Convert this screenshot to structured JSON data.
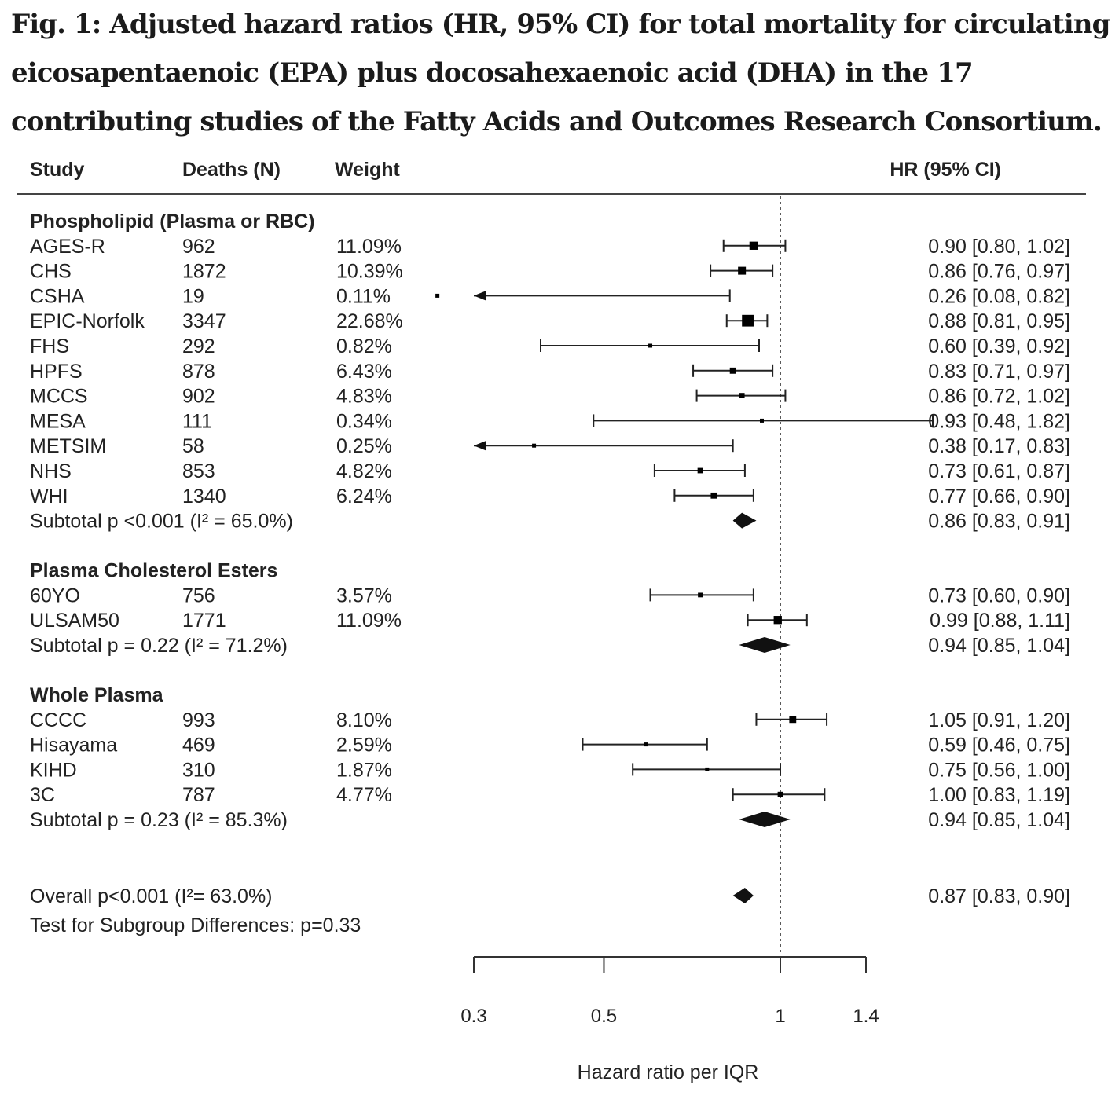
{
  "caption": "Fig. 1: Adjusted hazard ratios (HR, 95% CI) for total mortality for circulating eicosapentaenoic (EPA) plus docosahexaenoic acid (DHA) in the 17 contributing studies of the Fatty Acids and Outcomes Research Consortium.",
  "chart_data": {
    "type": "forest",
    "title": "Fig. 1: Adjusted hazard ratios (HR, 95% CI) for total mortality for circulating eicosapentaenoic (EPA) plus docosahexaenoic acid (DHA) in the 17 contributing studies of the Fatty Acids and Outcomes Research Consortium.",
    "columns": {
      "study": "Study",
      "deaths": "Deaths (N)",
      "weight": "Weight",
      "hr": "HR (95% CI)"
    },
    "xlabel": "Hazard ratio per IQR",
    "x_scale": "log",
    "xlim": [
      0.3,
      1.4
    ],
    "xticks": [
      0.3,
      0.5,
      1,
      1.4
    ],
    "xtick_labels": [
      "0.3",
      "0.5",
      "1",
      "1.4"
    ],
    "reference_line": 1,
    "groups": [
      {
        "name": "Phospholipid (Plasma or RBC)",
        "studies": [
          {
            "study": "AGES-R",
            "deaths": "962",
            "weight": "11.09%",
            "hr": 0.9,
            "lo": 0.8,
            "hi": 1.02,
            "label": "0.90 [0.80, 1.02]"
          },
          {
            "study": "CHS",
            "deaths": "1872",
            "weight": "10.39%",
            "hr": 0.86,
            "lo": 0.76,
            "hi": 0.97,
            "label": "0.86 [0.76, 0.97]"
          },
          {
            "study": "CSHA",
            "deaths": "19",
            "weight": "0.11%",
            "hr": 0.26,
            "lo": 0.08,
            "hi": 0.82,
            "label": "0.26 [0.08, 0.82]"
          },
          {
            "study": "EPIC-Norfolk",
            "deaths": "3347",
            "weight": "22.68%",
            "hr": 0.88,
            "lo": 0.81,
            "hi": 0.95,
            "label": "0.88 [0.81, 0.95]"
          },
          {
            "study": "FHS",
            "deaths": "292",
            "weight": "0.82%",
            "hr": 0.6,
            "lo": 0.39,
            "hi": 0.92,
            "label": "0.60 [0.39, 0.92]"
          },
          {
            "study": "HPFS",
            "deaths": "878",
            "weight": "6.43%",
            "hr": 0.83,
            "lo": 0.71,
            "hi": 0.97,
            "label": "0.83 [0.71, 0.97]"
          },
          {
            "study": "MCCS",
            "deaths": "902",
            "weight": "4.83%",
            "hr": 0.86,
            "lo": 0.72,
            "hi": 1.02,
            "label": "0.86 [0.72, 1.02]"
          },
          {
            "study": "MESA",
            "deaths": "111",
            "weight": "0.34%",
            "hr": 0.93,
            "lo": 0.48,
            "hi": 1.82,
            "label": "0.93 [0.48, 1.82]"
          },
          {
            "study": "METSIM",
            "deaths": "58",
            "weight": "0.25%",
            "hr": 0.38,
            "lo": 0.17,
            "hi": 0.83,
            "label": "0.38 [0.17, 0.83]"
          },
          {
            "study": "NHS",
            "deaths": "853",
            "weight": "4.82%",
            "hr": 0.73,
            "lo": 0.61,
            "hi": 0.87,
            "label": "0.73 [0.61, 0.87]"
          },
          {
            "study": "WHI",
            "deaths": "1340",
            "weight": "6.24%",
            "hr": 0.77,
            "lo": 0.66,
            "hi": 0.9,
            "label": "0.77 [0.66, 0.90]"
          }
        ],
        "subtotal": {
          "label": "Subtotal p <0.001 (I² = 65.0%)",
          "hr": 0.86,
          "lo": 0.83,
          "hi": 0.91,
          "hr_label": "0.86 [0.83, 0.91]"
        }
      },
      {
        "name": "Plasma Cholesterol Esters",
        "studies": [
          {
            "study": "60YO",
            "deaths": "756",
            "weight": "3.57%",
            "hr": 0.73,
            "lo": 0.6,
            "hi": 0.9,
            "label": "0.73 [0.60, 0.90]"
          },
          {
            "study": "ULSAM50",
            "deaths": "1771",
            "weight": "11.09%",
            "hr": 0.99,
            "lo": 0.88,
            "hi": 1.11,
            "label": "0.99 [0.88, 1.11]"
          }
        ],
        "subtotal": {
          "label": "Subtotal p = 0.22 (I² = 71.2%)",
          "hr": 0.94,
          "lo": 0.85,
          "hi": 1.04,
          "hr_label": "0.94 [0.85, 1.04]"
        }
      },
      {
        "name": "Whole Plasma",
        "studies": [
          {
            "study": "CCCC",
            "deaths": "993",
            "weight": "8.10%",
            "hr": 1.05,
            "lo": 0.91,
            "hi": 1.2,
            "label": "1.05 [0.91, 1.20]"
          },
          {
            "study": "Hisayama",
            "deaths": "469",
            "weight": "2.59%",
            "hr": 0.59,
            "lo": 0.46,
            "hi": 0.75,
            "label": "0.59 [0.46, 0.75]"
          },
          {
            "study": "KIHD",
            "deaths": "310",
            "weight": "1.87%",
            "hr": 0.75,
            "lo": 0.56,
            "hi": 1.0,
            "label": "0.75 [0.56, 1.00]"
          },
          {
            "study": "3C",
            "deaths": "787",
            "weight": "4.77%",
            "hr": 1.0,
            "lo": 0.83,
            "hi": 1.19,
            "label": "1.00 [0.83, 1.19]"
          }
        ],
        "subtotal": {
          "label": "Subtotal p = 0.23 (I² = 85.3%)",
          "hr": 0.94,
          "lo": 0.85,
          "hi": 1.04,
          "hr_label": "0.94 [0.85, 1.04]"
        }
      }
    ],
    "overall": {
      "label": "Overall p<0.001 (I²= 63.0%)",
      "hr": 0.87,
      "lo": 0.83,
      "hi": 0.9,
      "hr_label": "0.87 [0.83, 0.90]"
    },
    "footnote": "Test for Subgroup Differences: p=0.33"
  }
}
